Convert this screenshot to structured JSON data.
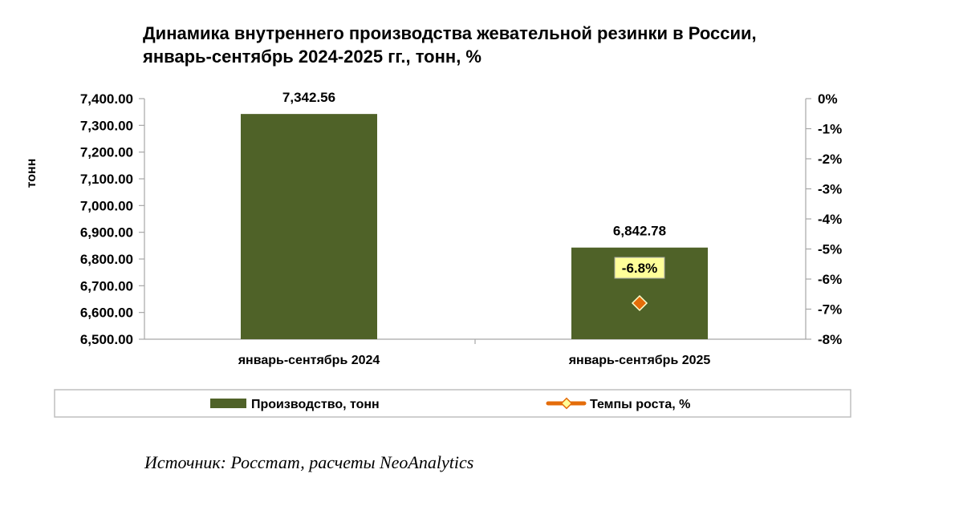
{
  "chart_data": {
    "type": "bar",
    "title": "Динамика внутреннего производства жевательной резинки в России,",
    "subtitle": "январь-сентябрь 2024-2025 гг., тонн, %",
    "categories": [
      "январь-сентябрь 2024",
      "январь-сентябрь 2025"
    ],
    "series": [
      {
        "name": "Производство, тонн",
        "type": "bar",
        "axis": "left",
        "values": [
          7342.56,
          6842.78
        ],
        "labels": [
          "7,342.56",
          "6,842.78"
        ],
        "color": "#4f6228"
      },
      {
        "name": "Темпы роста, %",
        "type": "line",
        "axis": "right",
        "values": [
          null,
          -6.8
        ],
        "labels": [
          "",
          "-6.8%"
        ],
        "color": "#e46c0a",
        "label_background": "#ffff99"
      }
    ],
    "ylabel": "тонн",
    "ylim": [
      6500,
      7400
    ],
    "yticks": [
      "7,400.00",
      "7,300.00",
      "7,200.00",
      "7,100.00",
      "7,000.00",
      "6,900.00",
      "6,800.00",
      "6,700.00",
      "6,600.00",
      "6,500.00"
    ],
    "y2lim": [
      -8,
      0
    ],
    "y2ticks": [
      "0%",
      "-1%",
      "-2%",
      "-3%",
      "-4%",
      "-5%",
      "-6%",
      "-7%",
      "-8%"
    ],
    "grid": false,
    "legend": "bottom"
  },
  "source": "Источник: Росстат, расчеты NeoAnalytics"
}
